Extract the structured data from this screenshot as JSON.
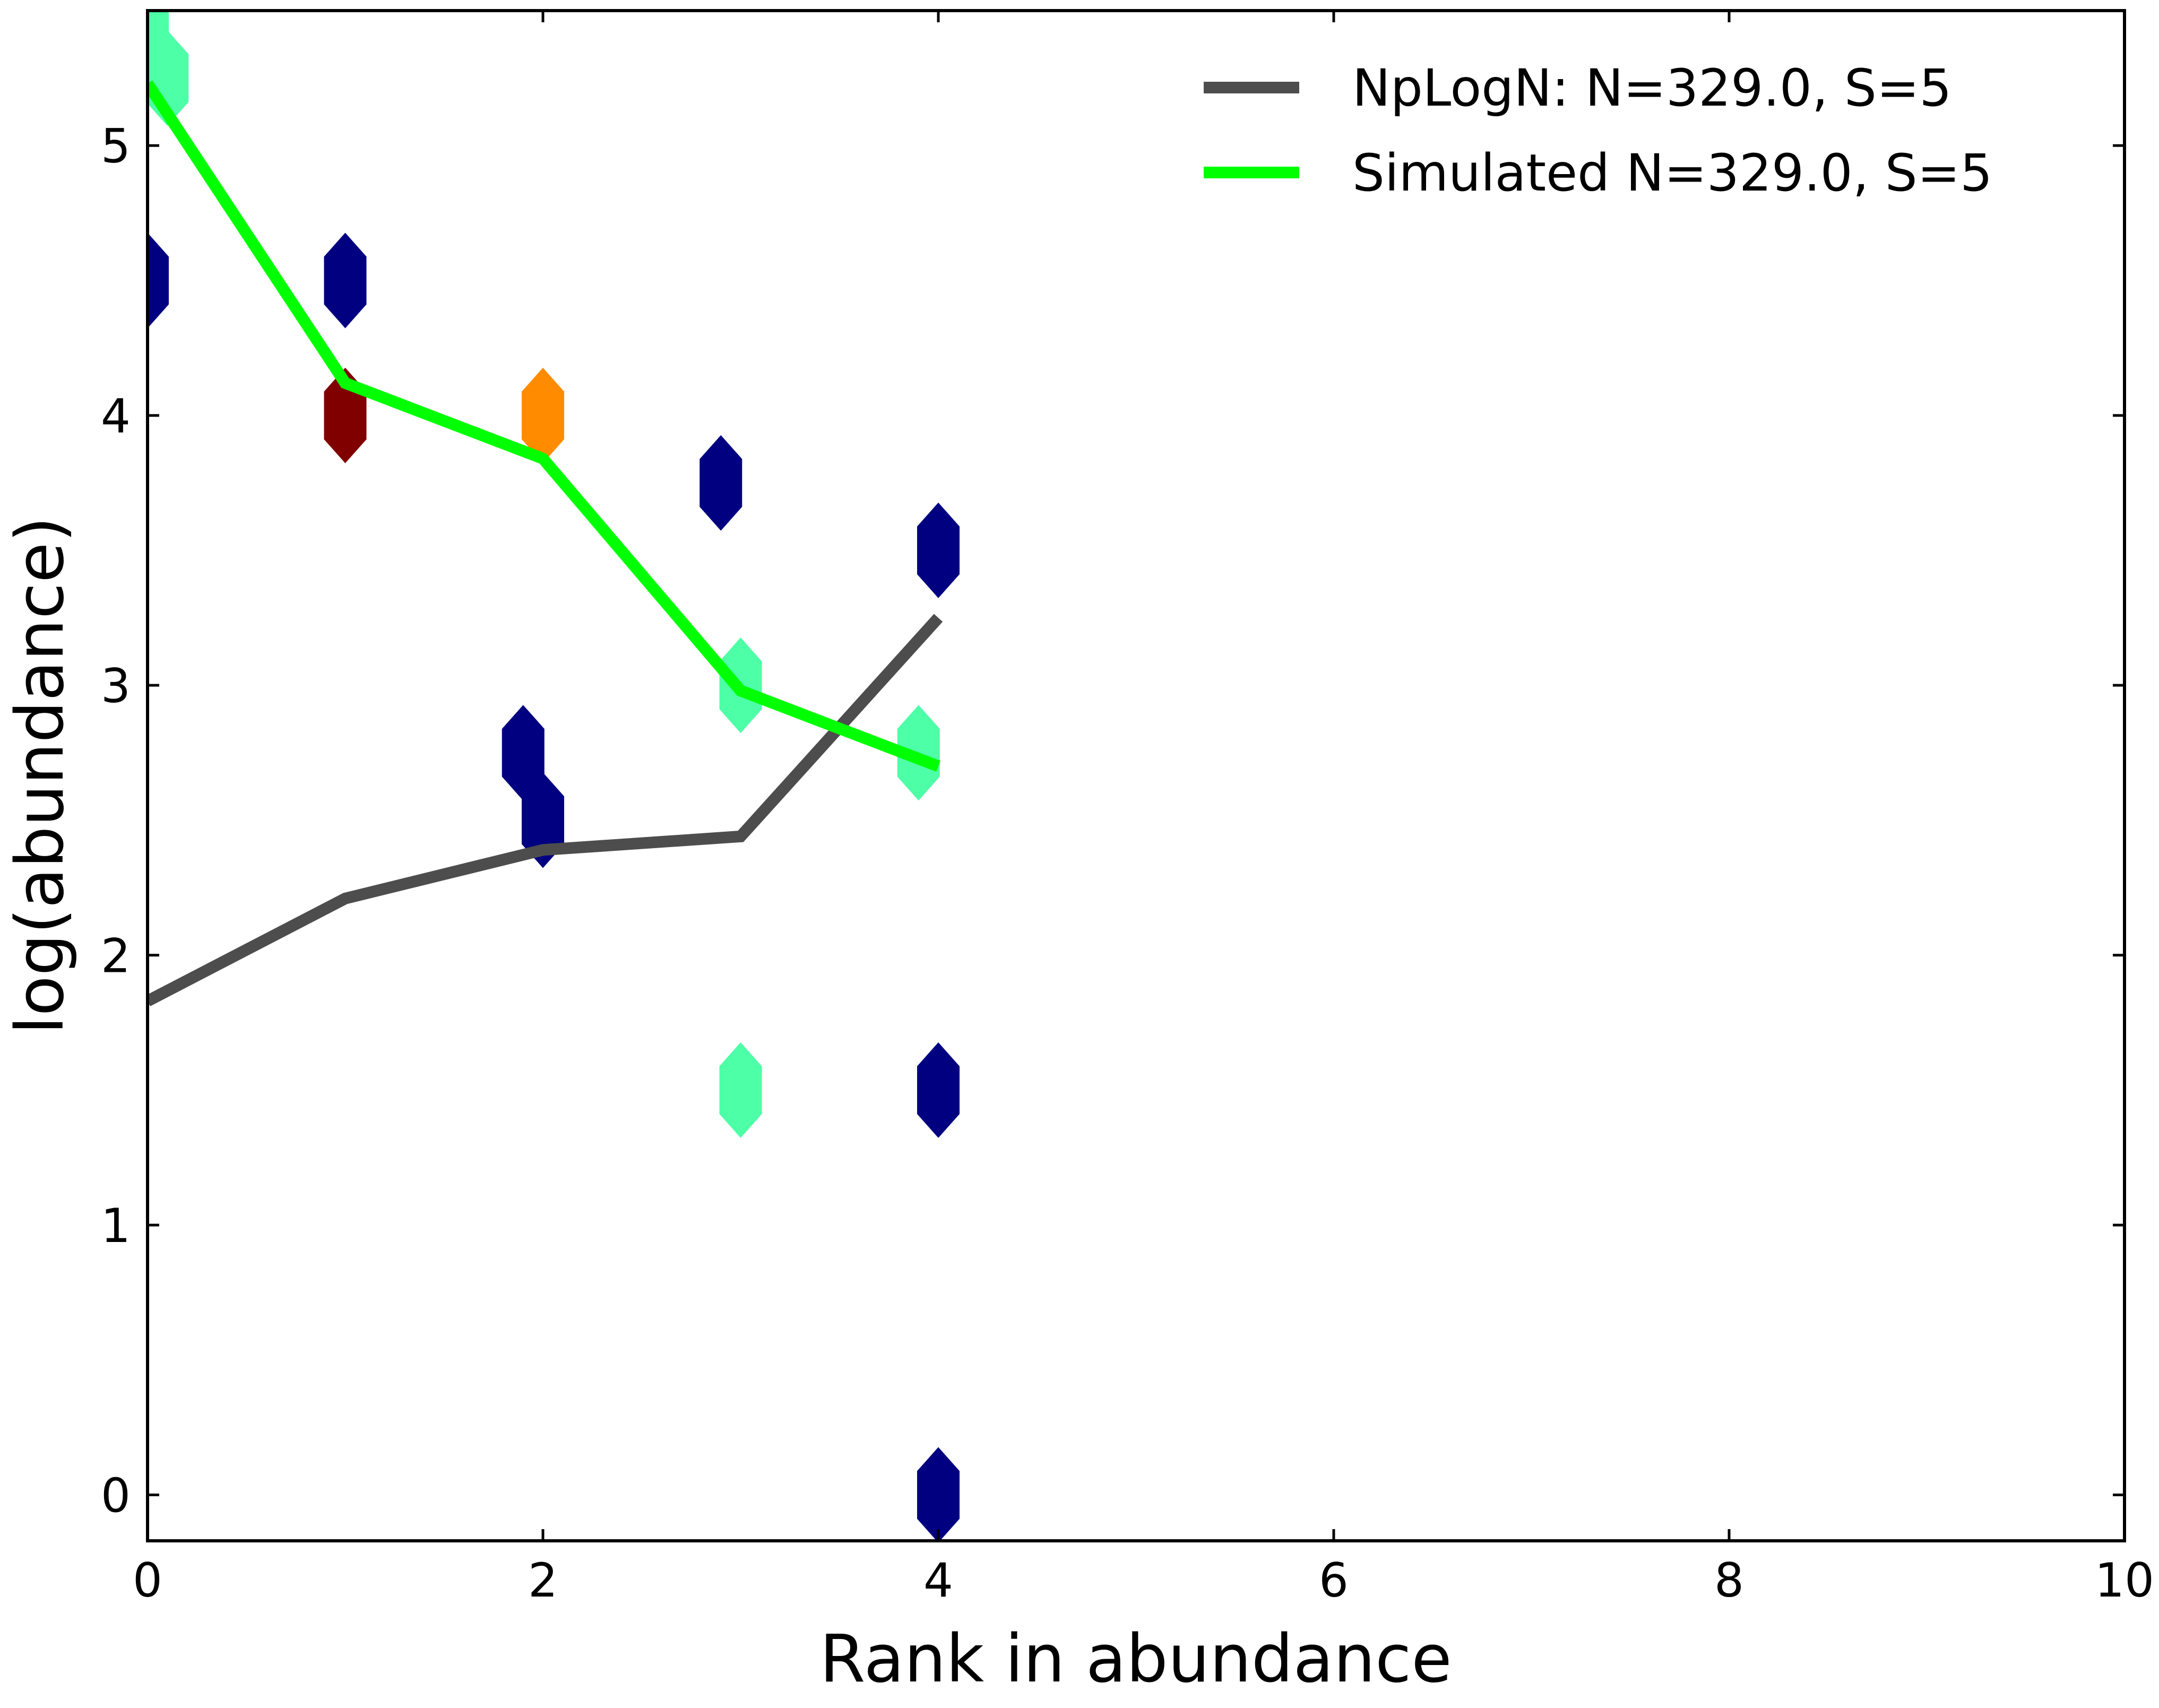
{
  "chart_data": {
    "type": "line",
    "xlabel": "Rank in abundance",
    "ylabel": "log(abundance)",
    "xlim": [
      0,
      10
    ],
    "ylim": [
      -0.17,
      5.5
    ],
    "x_ticks": [
      0,
      2,
      4,
      6,
      8,
      10
    ],
    "y_ticks": [
      0,
      1,
      2,
      3,
      4,
      5
    ],
    "grid": false,
    "legend": "top-right",
    "series": [
      {
        "name": "NpLogN: N=329.0, S=5",
        "color": "#4d4d4d",
        "x": [
          0,
          1,
          2,
          3,
          4
        ],
        "y": [
          1.83,
          2.21,
          2.39,
          2.44,
          3.25
        ]
      },
      {
        "name": "Simulated N=329.0, S=5",
        "color": "#00ff00",
        "x": [
          0,
          1,
          2,
          3,
          4
        ],
        "y": [
          5.23,
          4.12,
          3.84,
          2.98,
          2.7
        ]
      }
    ],
    "hexbin_points": [
      {
        "x": 0,
        "y": 5.5,
        "color": "#4dffa6"
      },
      {
        "x": 0.1,
        "y": 5.25,
        "color": "#4dffa6"
      },
      {
        "x": 0,
        "y": 4.5,
        "color": "#000080"
      },
      {
        "x": 1,
        "y": 4.5,
        "color": "#000080"
      },
      {
        "x": 1,
        "y": 4.0,
        "color": "#800000"
      },
      {
        "x": 2,
        "y": 4.0,
        "color": "#ff8c00"
      },
      {
        "x": 2.9,
        "y": 3.75,
        "color": "#000080"
      },
      {
        "x": 4,
        "y": 3.5,
        "color": "#000080"
      },
      {
        "x": 3,
        "y": 3.0,
        "color": "#4dffa6"
      },
      {
        "x": 3.9,
        "y": 2.75,
        "color": "#4dffa6"
      },
      {
        "x": 1.9,
        "y": 2.75,
        "color": "#000080"
      },
      {
        "x": 2,
        "y": 2.5,
        "color": "#000080"
      },
      {
        "x": 3,
        "y": 1.5,
        "color": "#4dffa6"
      },
      {
        "x": 4,
        "y": 1.5,
        "color": "#000080"
      },
      {
        "x": 4,
        "y": 0.0,
        "color": "#000080"
      }
    ]
  }
}
